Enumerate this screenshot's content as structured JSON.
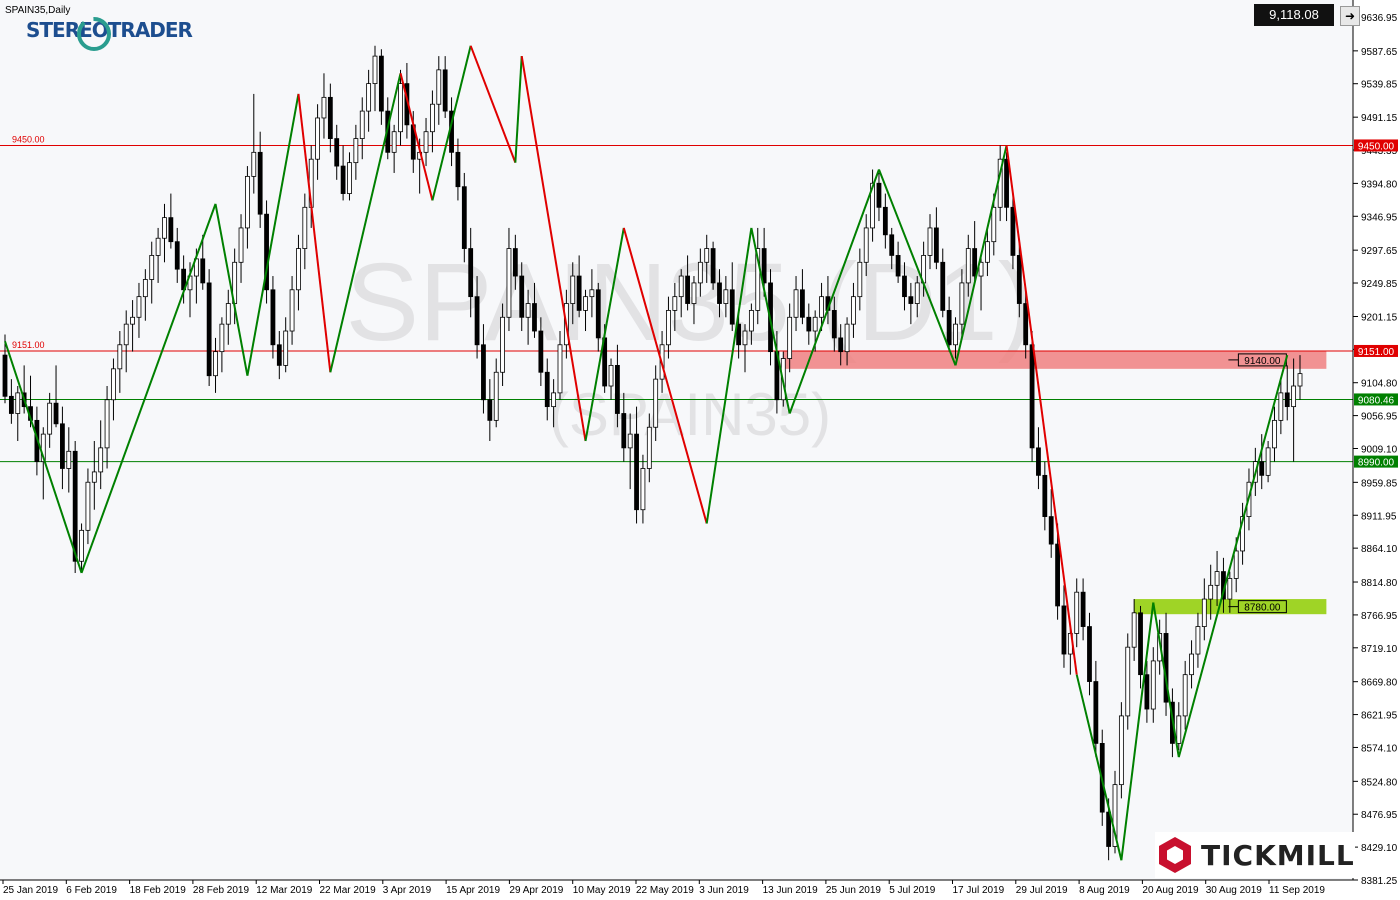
{
  "header": {
    "symbol_label": "SPAIN35,Daily",
    "current_price": "9,118.08",
    "logo_text": "STEREOTRADER",
    "brand_text": "TICKMILL",
    "watermark_main": "SPAIN35 (D1)",
    "watermark_sub": "(SPAIN35)"
  },
  "colors": {
    "background": "#f7f8fa",
    "bull_candle": "#ffffff",
    "bear_candle": "#000000",
    "resistance_line": "#e00000",
    "support_line": "#008000",
    "zone_red": "#f08080",
    "zone_green": "#8fce00",
    "zigzag_up": "#008000",
    "zigzag_down": "#e00000"
  },
  "chart_data": {
    "type": "candlestick",
    "title": "SPAIN35,Daily",
    "ylim": [
      8381.25,
      9650
    ],
    "y_ticks": [
      "9636.95",
      "9587.65",
      "9539.85",
      "9491.15",
      "9443.35",
      "9394.80",
      "9346.95",
      "9297.65",
      "9249.85",
      "9201.15",
      "9153.35",
      "9104.80",
      "9056.95",
      "9009.10",
      "8959.85",
      "8911.95",
      "8864.10",
      "8814.80",
      "8766.95",
      "8719.10",
      "8669.80",
      "8621.95",
      "8574.10",
      "8524.80",
      "8476.95",
      "8429.10",
      "8381.25"
    ],
    "x_labels": [
      "25 Jan 2019",
      "6 Feb 2019",
      "18 Feb 2019",
      "28 Feb 2019",
      "12 Mar 2019",
      "22 Mar 2019",
      "3 Apr 2019",
      "15 Apr 2019",
      "29 Apr 2019",
      "10 May 2019",
      "22 May 2019",
      "3 Jun 2019",
      "13 Jun 2019",
      "25 Jun 2019",
      "5 Jul 2019",
      "17 Jul 2019",
      "29 Jul 2019",
      "8 Aug 2019",
      "20 Aug 2019",
      "30 Aug 2019",
      "11 Sep 2019"
    ],
    "horizontal_lines": [
      {
        "value": 9450.0,
        "label": "9450.00",
        "color": "#e00000"
      },
      {
        "value": 9151.0,
        "label": "9151.00",
        "color": "#e00000"
      },
      {
        "value": 9080.46,
        "label": "9080.46",
        "color": "#008000"
      },
      {
        "value": 8990.0,
        "label": "8990.00",
        "color": "#008000"
      }
    ],
    "zones": [
      {
        "from_index": 122,
        "to_index": 204,
        "top": 9151,
        "bottom": 9125,
        "label": "9140.00",
        "color": "#f08080"
      },
      {
        "from_index": 177,
        "to_index": 204,
        "top": 8790,
        "bottom": 8768,
        "label": "8780.00",
        "color": "#8fce00"
      }
    ],
    "zigzag": [
      {
        "i": 0,
        "v": 9165
      },
      {
        "i": 12,
        "v": 8828
      },
      {
        "i": 33,
        "v": 9365
      },
      {
        "i": 38,
        "v": 9115
      },
      {
        "i": 46,
        "v": 9525
      },
      {
        "i": 51,
        "v": 9120
      },
      {
        "i": 62,
        "v": 9555
      },
      {
        "i": 67,
        "v": 9370
      },
      {
        "i": 73,
        "v": 9595
      },
      {
        "i": 80,
        "v": 9425
      },
      {
        "i": 81,
        "v": 9580
      },
      {
        "i": 91,
        "v": 9020
      },
      {
        "i": 97,
        "v": 9330
      },
      {
        "i": 110,
        "v": 8900
      },
      {
        "i": 117,
        "v": 9330
      },
      {
        "i": 123,
        "v": 9060
      },
      {
        "i": 137,
        "v": 9415
      },
      {
        "i": 149,
        "v": 9130
      },
      {
        "i": 157,
        "v": 9450
      },
      {
        "i": 168,
        "v": 8680
      },
      {
        "i": 175,
        "v": 8410
      },
      {
        "i": 180,
        "v": 8785
      },
      {
        "i": 184,
        "v": 8560
      },
      {
        "i": 201,
        "v": 9145
      }
    ],
    "candles": [
      [
        9145,
        9175,
        9075,
        9085
      ],
      [
        9085,
        9110,
        9045,
        9060
      ],
      [
        9060,
        9100,
        9020,
        9090
      ],
      [
        9090,
        9130,
        9060,
        9070
      ],
      [
        9070,
        9115,
        9040,
        9050
      ],
      [
        9050,
        9070,
        8970,
        8990
      ],
      [
        8990,
        9040,
        8935,
        9030
      ],
      [
        9030,
        9090,
        9010,
        9075
      ],
      [
        9075,
        9130,
        9040,
        9045
      ],
      [
        9045,
        9070,
        8950,
        8980
      ],
      [
        8980,
        9040,
        8945,
        9005
      ],
      [
        9005,
        9020,
        8828,
        8845
      ],
      [
        8845,
        8900,
        8830,
        8890
      ],
      [
        8890,
        8980,
        8870,
        8960
      ],
      [
        8960,
        9020,
        8920,
        8975
      ],
      [
        8975,
        9050,
        8950,
        9010
      ],
      [
        9010,
        9100,
        8980,
        9080
      ],
      [
        9080,
        9140,
        9050,
        9125
      ],
      [
        9125,
        9180,
        9090,
        9160
      ],
      [
        9160,
        9210,
        9120,
        9190
      ],
      [
        9190,
        9225,
        9150,
        9200
      ],
      [
        9200,
        9250,
        9170,
        9230
      ],
      [
        9230,
        9270,
        9195,
        9255
      ],
      [
        9255,
        9310,
        9220,
        9290
      ],
      [
        9290,
        9330,
        9250,
        9315
      ],
      [
        9315,
        9365,
        9280,
        9345
      ],
      [
        9345,
        9380,
        9300,
        9310
      ],
      [
        9310,
        9330,
        9250,
        9270
      ],
      [
        9270,
        9290,
        9220,
        9240
      ],
      [
        9240,
        9280,
        9200,
        9260
      ],
      [
        9260,
        9300,
        9220,
        9285
      ],
      [
        9285,
        9320,
        9240,
        9250
      ],
      [
        9250,
        9270,
        9100,
        9115
      ],
      [
        9115,
        9170,
        9090,
        9150
      ],
      [
        9150,
        9200,
        9120,
        9190
      ],
      [
        9190,
        9240,
        9160,
        9220
      ],
      [
        9220,
        9300,
        9190,
        9280
      ],
      [
        9280,
        9350,
        9250,
        9330
      ],
      [
        9330,
        9420,
        9300,
        9405
      ],
      [
        9405,
        9525,
        9380,
        9440
      ],
      [
        9440,
        9470,
        9330,
        9350
      ],
      [
        9350,
        9370,
        9220,
        9240
      ],
      [
        9240,
        9260,
        9140,
        9160
      ],
      [
        9160,
        9180,
        9110,
        9130
      ],
      [
        9130,
        9200,
        9120,
        9180
      ],
      [
        9180,
        9260,
        9160,
        9240
      ],
      [
        9240,
        9320,
        9210,
        9300
      ],
      [
        9300,
        9380,
        9270,
        9360
      ],
      [
        9360,
        9450,
        9330,
        9430
      ],
      [
        9430,
        9510,
        9400,
        9490
      ],
      [
        9490,
        9555,
        9460,
        9520
      ],
      [
        9520,
        9540,
        9440,
        9460
      ],
      [
        9460,
        9480,
        9400,
        9420
      ],
      [
        9420,
        9450,
        9370,
        9380
      ],
      [
        9380,
        9440,
        9370,
        9425
      ],
      [
        9425,
        9480,
        9400,
        9460
      ],
      [
        9460,
        9520,
        9430,
        9500
      ],
      [
        9500,
        9560,
        9470,
        9540
      ],
      [
        9540,
        9595,
        9500,
        9580
      ],
      [
        9580,
        9590,
        9480,
        9500
      ],
      [
        9500,
        9520,
        9430,
        9440
      ],
      [
        9440,
        9480,
        9410,
        9470
      ],
      [
        9470,
        9560,
        9450,
        9540
      ],
      [
        9540,
        9570,
        9460,
        9480
      ],
      [
        9480,
        9500,
        9410,
        9430
      ],
      [
        9430,
        9460,
        9380,
        9440
      ],
      [
        9440,
        9490,
        9420,
        9470
      ],
      [
        9470,
        9530,
        9440,
        9510
      ],
      [
        9510,
        9580,
        9480,
        9560
      ],
      [
        9560,
        9580,
        9490,
        9500
      ],
      [
        9500,
        9520,
        9420,
        9440
      ],
      [
        9440,
        9460,
        9370,
        9390
      ],
      [
        9390,
        9410,
        9280,
        9300
      ],
      [
        9300,
        9330,
        9200,
        9230
      ],
      [
        9230,
        9260,
        9140,
        9160
      ],
      [
        9160,
        9190,
        9060,
        9080
      ],
      [
        9080,
        9110,
        9020,
        9050
      ],
      [
        9050,
        9140,
        9040,
        9120
      ],
      [
        9120,
        9220,
        9100,
        9200
      ],
      [
        9200,
        9330,
        9180,
        9300
      ],
      [
        9300,
        9320,
        9240,
        9260
      ],
      [
        9260,
        9280,
        9180,
        9200
      ],
      [
        9200,
        9240,
        9160,
        9220
      ],
      [
        9220,
        9250,
        9170,
        9180
      ],
      [
        9180,
        9200,
        9100,
        9120
      ],
      [
        9120,
        9140,
        9050,
        9070
      ],
      [
        9070,
        9110,
        9040,
        9090
      ],
      [
        9090,
        9180,
        9080,
        9160
      ],
      [
        9160,
        9240,
        9140,
        9220
      ],
      [
        9220,
        9280,
        9190,
        9260
      ],
      [
        9260,
        9290,
        9200,
        9210
      ],
      [
        9210,
        9240,
        9180,
        9230
      ],
      [
        9230,
        9270,
        9200,
        9240
      ],
      [
        9240,
        9250,
        9150,
        9170
      ],
      [
        9170,
        9190,
        9090,
        9100
      ],
      [
        9100,
        9140,
        9080,
        9130
      ],
      [
        9130,
        9160,
        9040,
        9060
      ],
      [
        9060,
        9090,
        8990,
        9010
      ],
      [
        9010,
        9060,
        8950,
        9030
      ],
      [
        9030,
        9070,
        8900,
        8920
      ],
      [
        8920,
        9000,
        8900,
        8980
      ],
      [
        8980,
        9060,
        8960,
        9040
      ],
      [
        9040,
        9130,
        9020,
        9110
      ],
      [
        9110,
        9180,
        9090,
        9160
      ],
      [
        9160,
        9230,
        9140,
        9210
      ],
      [
        9210,
        9250,
        9180,
        9230
      ],
      [
        9230,
        9270,
        9200,
        9260
      ],
      [
        9260,
        9290,
        9210,
        9220
      ],
      [
        9220,
        9260,
        9190,
        9250
      ],
      [
        9250,
        9300,
        9230,
        9280
      ],
      [
        9280,
        9320,
        9250,
        9300
      ],
      [
        9300,
        9310,
        9240,
        9250
      ],
      [
        9250,
        9270,
        9200,
        9220
      ],
      [
        9220,
        9260,
        9200,
        9240
      ],
      [
        9240,
        9280,
        9180,
        9190
      ],
      [
        9190,
        9210,
        9140,
        9160
      ],
      [
        9160,
        9190,
        9120,
        9180
      ],
      [
        9180,
        9220,
        9160,
        9210
      ],
      [
        9210,
        9330,
        9190,
        9300
      ],
      [
        9300,
        9330,
        9230,
        9250
      ],
      [
        9250,
        9270,
        9130,
        9150
      ],
      [
        9150,
        9180,
        9060,
        9080
      ],
      [
        9080,
        9150,
        9070,
        9140
      ],
      [
        9140,
        9220,
        9120,
        9200
      ],
      [
        9200,
        9260,
        9180,
        9240
      ],
      [
        9240,
        9270,
        9190,
        9200
      ],
      [
        9200,
        9220,
        9160,
        9180
      ],
      [
        9180,
        9210,
        9150,
        9200
      ],
      [
        9200,
        9250,
        9180,
        9230
      ],
      [
        9230,
        9260,
        9190,
        9210
      ],
      [
        9210,
        9230,
        9150,
        9170
      ],
      [
        9170,
        9190,
        9130,
        9150
      ],
      [
        9150,
        9200,
        9130,
        9190
      ],
      [
        9190,
        9250,
        9170,
        9230
      ],
      [
        9230,
        9300,
        9210,
        9280
      ],
      [
        9280,
        9350,
        9260,
        9330
      ],
      [
        9330,
        9415,
        9310,
        9395
      ],
      [
        9395,
        9410,
        9340,
        9360
      ],
      [
        9360,
        9380,
        9300,
        9320
      ],
      [
        9320,
        9330,
        9270,
        9290
      ],
      [
        9290,
        9310,
        9250,
        9260
      ],
      [
        9260,
        9280,
        9210,
        9230
      ],
      [
        9230,
        9250,
        9190,
        9220
      ],
      [
        9220,
        9260,
        9200,
        9250
      ],
      [
        9250,
        9310,
        9230,
        9290
      ],
      [
        9290,
        9350,
        9270,
        9330
      ],
      [
        9330,
        9360,
        9270,
        9280
      ],
      [
        9280,
        9300,
        9200,
        9210
      ],
      [
        9210,
        9230,
        9150,
        9160
      ],
      [
        9160,
        9200,
        9140,
        9190
      ],
      [
        9190,
        9270,
        9170,
        9250
      ],
      [
        9250,
        9320,
        9230,
        9300
      ],
      [
        9300,
        9340,
        9250,
        9260
      ],
      [
        9260,
        9290,
        9210,
        9280
      ],
      [
        9280,
        9330,
        9260,
        9310
      ],
      [
        9310,
        9380,
        9290,
        9360
      ],
      [
        9360,
        9450,
        9340,
        9430
      ],
      [
        9430,
        9440,
        9340,
        9360
      ],
      [
        9360,
        9380,
        9270,
        9290
      ],
      [
        9290,
        9310,
        9200,
        9220
      ],
      [
        9220,
        9240,
        9140,
        9160
      ],
      [
        9160,
        9180,
        8990,
        9010
      ],
      [
        9010,
        9040,
        8950,
        8970
      ],
      [
        8970,
        8990,
        8890,
        8910
      ],
      [
        8910,
        8950,
        8850,
        8870
      ],
      [
        8870,
        8900,
        8760,
        8780
      ],
      [
        8780,
        8810,
        8690,
        8710
      ],
      [
        8710,
        8750,
        8680,
        8740
      ],
      [
        8740,
        8820,
        8720,
        8800
      ],
      [
        8800,
        8820,
        8730,
        8750
      ],
      [
        8750,
        8770,
        8650,
        8670
      ],
      [
        8670,
        8700,
        8560,
        8580
      ],
      [
        8580,
        8600,
        8460,
        8480
      ],
      [
        8480,
        8500,
        8410,
        8430
      ],
      [
        8430,
        8540,
        8420,
        8520
      ],
      [
        8520,
        8640,
        8500,
        8620
      ],
      [
        8620,
        8740,
        8600,
        8720
      ],
      [
        8720,
        8790,
        8700,
        8770
      ],
      [
        8770,
        8780,
        8660,
        8680
      ],
      [
        8680,
        8700,
        8610,
        8630
      ],
      [
        8630,
        8720,
        8610,
        8700
      ],
      [
        8700,
        8760,
        8680,
        8740
      ],
      [
        8740,
        8770,
        8620,
        8640
      ],
      [
        8640,
        8660,
        8560,
        8580
      ],
      [
        8580,
        8640,
        8570,
        8620
      ],
      [
        8620,
        8700,
        8600,
        8680
      ],
      [
        8680,
        8730,
        8660,
        8710
      ],
      [
        8710,
        8770,
        8690,
        8750
      ],
      [
        8750,
        8820,
        8730,
        8790
      ],
      [
        8790,
        8840,
        8760,
        8810
      ],
      [
        8810,
        8860,
        8780,
        8830
      ],
      [
        8830,
        8850,
        8770,
        8790
      ],
      [
        8790,
        8830,
        8770,
        8820
      ],
      [
        8820,
        8880,
        8800,
        8860
      ],
      [
        8860,
        8930,
        8840,
        8910
      ],
      [
        8910,
        8980,
        8890,
        8960
      ],
      [
        8960,
        9010,
        8940,
        8990
      ],
      [
        8990,
        9030,
        8950,
        8970
      ],
      [
        8970,
        9020,
        8960,
        9010
      ],
      [
        9010,
        9070,
        8990,
        9050
      ],
      [
        9050,
        9110,
        9030,
        9090
      ],
      [
        9090,
        9130,
        9050,
        9070
      ],
      [
        9070,
        9140,
        8990,
        9100
      ],
      [
        9100,
        9145,
        9080,
        9118
      ]
    ]
  }
}
